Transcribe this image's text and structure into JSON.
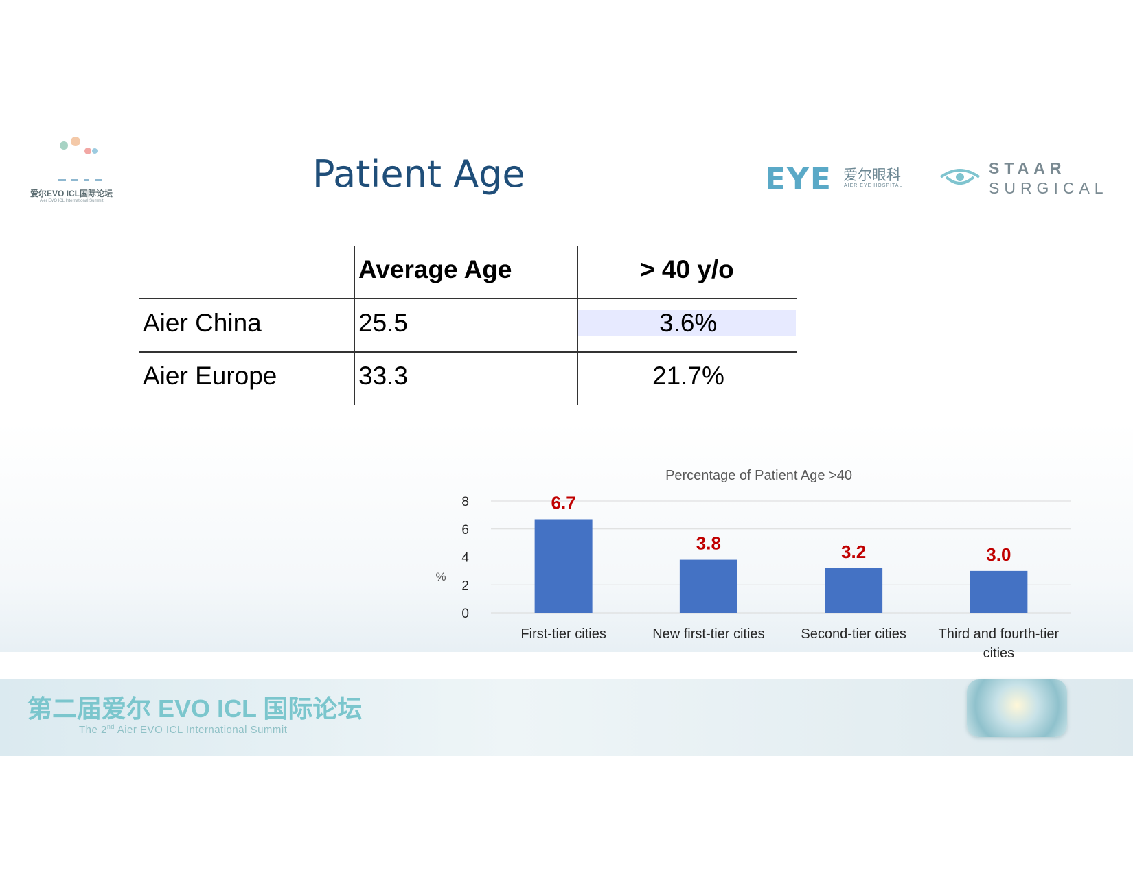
{
  "header": {
    "title": "Patient Age",
    "summit_logo_text": "爱尔EVO ICL国际论坛",
    "summit_logo_sub": "Aier EVO ICL International Summit",
    "aier_logo_mark": "EYE",
    "aier_logo_cn": "爱尔眼科",
    "aier_logo_en": "AIER EYE HOSPITAL",
    "staar_line1": "STAAR",
    "staar_line2": "SURGICAL"
  },
  "table": {
    "headers": [
      "",
      "Average Age",
      "> 40 y/o"
    ],
    "rows": [
      {
        "label": "Aier China",
        "average_age": "25.5",
        "over_40": "3.6%"
      },
      {
        "label": "Aier Europe",
        "average_age": "33.3",
        "over_40": "21.7%"
      }
    ]
  },
  "colors": {
    "title": "#1f4e79",
    "bar": "#4472c4",
    "data_label": "#c00000",
    "highlight": "#e7eaff"
  },
  "chart_data": {
    "type": "bar",
    "title": "Percentage of Patient Age >40",
    "categories": [
      "First-tier cities",
      "New first-tier cities",
      "Second-tier cities",
      "Third and fourth-tier cities"
    ],
    "values": [
      6.7,
      3.8,
      3.2,
      3.0
    ],
    "data_labels": [
      "6.7",
      "3.8",
      "3.2",
      "3.0"
    ],
    "xlabel": "",
    "ylabel": "%",
    "ylim": [
      0,
      8
    ],
    "yticks": [
      0,
      2,
      4,
      6,
      8
    ],
    "grid": true,
    "legend": "none"
  },
  "footer": {
    "title_cn": "第二届爱尔 EVO ICL 国际论坛",
    "subtitle_pre": "The 2",
    "subtitle_sup": "nd",
    "subtitle_post": " Aier EVO ICL International Summit"
  }
}
